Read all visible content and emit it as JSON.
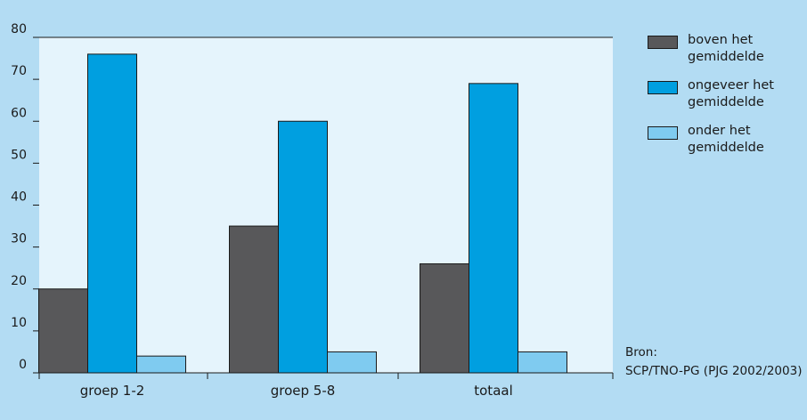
{
  "chart_data": {
    "type": "bar",
    "categories": [
      "groep 1-2",
      "groep 5-8",
      "totaal"
    ],
    "series": [
      {
        "name": "boven het gemiddelde",
        "values": [
          20,
          35,
          26
        ],
        "color": "#58585a"
      },
      {
        "name": "ongeveer het gemiddelde",
        "values": [
          76,
          60,
          69
        ],
        "color": "#009fe0"
      },
      {
        "name": "onder het gemiddelde",
        "values": [
          4,
          5,
          5
        ],
        "color": "#7fcbf0"
      }
    ],
    "ylim": [
      0,
      80
    ],
    "yticks": [
      "0",
      "10",
      "20",
      "30",
      "40",
      "50",
      "60",
      "70",
      "80"
    ],
    "title": "",
    "xlabel": "",
    "ylabel": "",
    "grid": false,
    "legend_position": "top-right",
    "plot_background": "#e5f4fc"
  },
  "legend": {
    "items": [
      {
        "line1": "boven het",
        "line2": "gemiddelde",
        "color": "#58585a"
      },
      {
        "line1": "ongeveer het",
        "line2": "gemiddelde",
        "color": "#009fe0"
      },
      {
        "line1": "onder het",
        "line2": "gemiddelde",
        "color": "#7fcbf0"
      }
    ]
  },
  "source": {
    "label": "Bron:",
    "text": "SCP/TNO-PG (PJG 2002/2003)"
  }
}
